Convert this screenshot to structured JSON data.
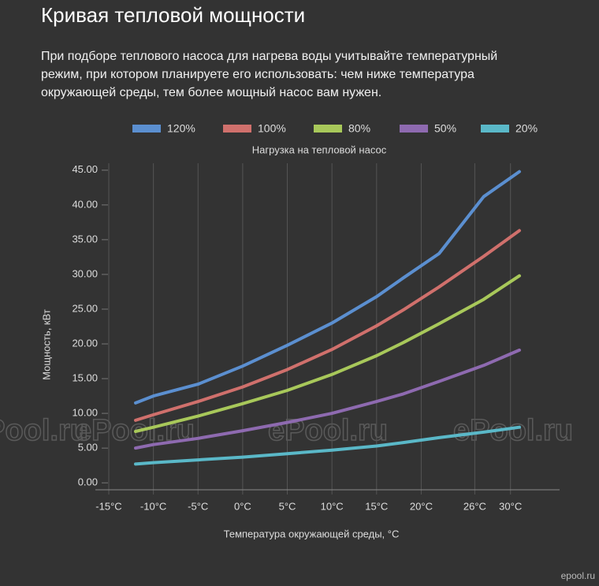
{
  "chart_data": {
    "type": "line",
    "page_title": "Кривая тепловой мощности",
    "description": "При подборе теплового насоса для нагрева воды учитывайте температурный режим, при котором планируете его использовать: чем ниже температура окружающей среды, тем более мощный насос вам нужен.",
    "title": "Нагрузка на тепловой насос",
    "x_label": "Температура окружающей среды, °C",
    "y_label": "Мощность, кВт",
    "watermark": "ePool.ru",
    "corner_watermark": "epool.ru",
    "x": [
      -12,
      -10,
      -5,
      0,
      5,
      10,
      15,
      18,
      22,
      27,
      31
    ],
    "series": [
      {
        "name": "120%",
        "color": "#5b8fd0",
        "values": [
          11.5,
          12.5,
          14.2,
          16.8,
          19.8,
          23.0,
          26.8,
          29.5,
          33.0,
          41.2,
          44.8
        ]
      },
      {
        "name": "100%",
        "color": "#d0706c",
        "values": [
          9.0,
          9.8,
          11.7,
          13.8,
          16.3,
          19.2,
          22.6,
          24.9,
          28.2,
          32.6,
          36.3
        ]
      },
      {
        "name": "80%",
        "color": "#a8c85a",
        "values": [
          7.4,
          8.0,
          9.6,
          11.4,
          13.3,
          15.6,
          18.3,
          20.2,
          22.9,
          26.4,
          29.8
        ]
      },
      {
        "name": "50%",
        "color": "#8e6ab0",
        "values": [
          5.0,
          5.5,
          6.4,
          7.5,
          8.7,
          10.0,
          11.7,
          12.8,
          14.6,
          16.9,
          19.1
        ]
      },
      {
        "name": "20%",
        "color": "#5ab8c8",
        "values": [
          2.7,
          2.9,
          3.3,
          3.7,
          4.2,
          4.7,
          5.3,
          5.8,
          6.5,
          7.3,
          8.0
        ]
      }
    ],
    "xlim": [
      -16.5,
      35.5
    ],
    "xticks": [
      {
        "value": -15,
        "label": "-15°C"
      },
      {
        "value": -10,
        "label": "-10°C"
      },
      {
        "value": -5,
        "label": "-5°C"
      },
      {
        "value": 0,
        "label": "0°C"
      },
      {
        "value": 5,
        "label": "5°C"
      },
      {
        "value": 10,
        "label": "10°C"
      },
      {
        "value": 15,
        "label": "15°C"
      },
      {
        "value": 20,
        "label": "20°C"
      },
      {
        "value": 26,
        "label": "26°C"
      },
      {
        "value": 30,
        "label": "30°C"
      }
    ],
    "ylim": [
      -1,
      46
    ],
    "yticks": [
      {
        "value": 0,
        "label": "0.00"
      },
      {
        "value": 5,
        "label": "5.00"
      },
      {
        "value": 10,
        "label": "10.00"
      },
      {
        "value": 15,
        "label": "15.00"
      },
      {
        "value": 20,
        "label": "20.00"
      },
      {
        "value": 25,
        "label": "25.00"
      },
      {
        "value": 30,
        "label": "30.00"
      },
      {
        "value": 35,
        "label": "35.00"
      },
      {
        "value": 40,
        "label": "40.00"
      },
      {
        "value": 45,
        "label": "45.00"
      }
    ],
    "grid": true,
    "legend": "top"
  }
}
